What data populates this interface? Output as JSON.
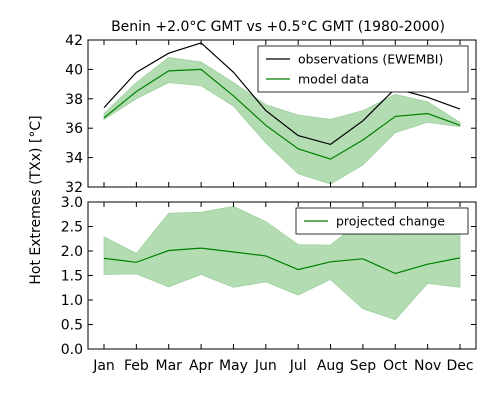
{
  "chart_data": [
    {
      "type": "line",
      "title": "Benin  +2.0°C GMT vs +0.5°C GMT (1980-2000)",
      "ylabel": "Hot Extremes (TXx) [$^\\circ C$]",
      "ylabel_display": "Hot Extremes (TXx) [°C]",
      "categories": [
        "Jan",
        "Feb",
        "Mar",
        "Apr",
        "May",
        "Jun",
        "Jul",
        "Aug",
        "Sep",
        "Oct",
        "Nov",
        "Dec"
      ],
      "ylim": [
        32,
        42
      ],
      "yticks": [
        32,
        34,
        36,
        38,
        40,
        42
      ],
      "legend_position": "top-right",
      "series": [
        {
          "name": "observations (EWEMBI)",
          "color": "#000000",
          "values": [
            37.4,
            39.8,
            41.1,
            41.8,
            39.8,
            37.2,
            35.5,
            34.9,
            36.5,
            38.7,
            38.1,
            37.3
          ]
        },
        {
          "name": "model data",
          "color": "#008000",
          "values": [
            36.7,
            38.5,
            39.9,
            40.0,
            38.2,
            36.2,
            34.6,
            33.9,
            35.2,
            36.8,
            37.0,
            36.2
          ],
          "band_low": [
            36.6,
            38.0,
            39.1,
            38.9,
            37.5,
            35.0,
            32.9,
            32.2,
            33.5,
            35.7,
            36.4,
            36.1
          ],
          "band_high": [
            37.0,
            39.1,
            40.8,
            40.5,
            39.1,
            37.6,
            36.9,
            36.6,
            37.2,
            38.3,
            37.8,
            36.4
          ],
          "band_color": "#b3dcb3"
        }
      ]
    },
    {
      "type": "line",
      "categories": [
        "Jan",
        "Feb",
        "Mar",
        "Apr",
        "May",
        "Jun",
        "Jul",
        "Aug",
        "Sep",
        "Oct",
        "Nov",
        "Dec"
      ],
      "ylim": [
        0.0,
        3.0
      ],
      "yticks": [
        0.0,
        0.5,
        1.0,
        1.5,
        2.0,
        2.5,
        3.0
      ],
      "legend_position": "top-right",
      "series": [
        {
          "name": "projected change",
          "color": "#008000",
          "values": [
            1.85,
            1.77,
            2.01,
            2.06,
            1.98,
            1.9,
            1.62,
            1.78,
            1.84,
            1.54,
            1.73,
            1.86
          ],
          "band_low": [
            1.52,
            1.53,
            1.27,
            1.52,
            1.26,
            1.37,
            1.1,
            1.42,
            0.82,
            0.6,
            1.34,
            1.26
          ],
          "band_high": [
            2.29,
            1.95,
            2.77,
            2.79,
            2.91,
            2.6,
            2.13,
            2.12,
            2.65,
            2.32,
            2.6,
            2.4
          ],
          "band_color": "#b3dcb3"
        }
      ]
    }
  ]
}
